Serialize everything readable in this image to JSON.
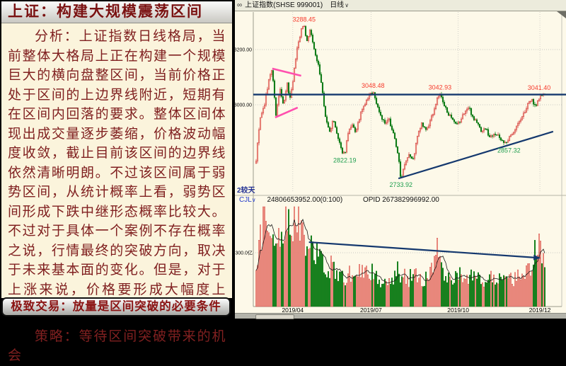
{
  "left_panel": {
    "title": "上证：构建大规模震荡区间",
    "analysis": "分析：上证指数日线格局，当前整体大格局上正在构建一个规模巨大的横向盘整区间，当前价格正处于区间的上边界线附近，短期有在区间内回落的要求。整体区间体现出成交量逐步萎缩，价格波动幅度收敛，截止目前该区间的边界线依然清晰明朗。不过该区间属于弱势区间，从统计概率上看，弱势区间形成下跌中继形态概率比较大。不过对于具体一个案例不存在概率之说，行情最终的突破方向，取决于未来基本面的变化。但是，对于上涨来说，价格要形成大幅度上涨，放量是必要条件。",
    "strategy": "策略：等待区间突破带来的机会",
    "footer_button": "极致交易：放量是区间突破的必要条件"
  },
  "chart": {
    "header": {
      "link_icon": "∞",
      "symbol": "上证指数(SHSE 999001)",
      "period": "日线",
      "dropdown": "∨"
    },
    "pane_tab": "2较天",
    "volume_header": {
      "indicator": "CJL",
      "dropdown": "∨",
      "value": "24806653952.00(0:100)",
      "opid": "OPID 267382996992.00"
    }
  },
  "chart_data": {
    "type": "candlestick",
    "symbol": "上证指数",
    "code": "SHSE 999001",
    "period": "日线",
    "date_range": [
      "2019/02",
      "2019/12"
    ],
    "price_axis": {
      "ticks": [
        {
          "label": "3200.00",
          "price": 3200
        },
        {
          "label": "3000.00",
          "price": 3000
        }
      ]
    },
    "volume_axis": {
      "tick_label": "300.0亿",
      "tick_value": 300,
      "unit": "亿"
    },
    "x_ticks": [
      {
        "label": "2019/04",
        "t": 0.127
      },
      {
        "label": "2019/07",
        "t": 0.398
      },
      {
        "label": "2019/10",
        "t": 0.7
      },
      {
        "label": "2019/12",
        "t": 0.983
      }
    ],
    "price_labels": [
      {
        "text": "3288.45",
        "price": 3288.45,
        "t": 0.166,
        "color": "#f63a2c",
        "pos": "above",
        "dx": 0
      },
      {
        "text": "3048.48",
        "price": 3048.48,
        "t": 0.405,
        "color": "#f63a2c",
        "pos": "above",
        "dx": 0
      },
      {
        "text": "3042.93",
        "price": 3042.93,
        "t": 0.637,
        "color": "#f63a2c",
        "pos": "above",
        "dx": 0
      },
      {
        "text": "3041.40",
        "price": 3041.4,
        "t": 1.0,
        "color": "#f63a2c",
        "pos": "above",
        "dx": -8
      },
      {
        "text": "2822.19",
        "price": 2822.19,
        "t": 0.307,
        "color": "#1e9e4e",
        "pos": "below",
        "dx": 0
      },
      {
        "text": "2733.92",
        "price": 2733.92,
        "t": 0.502,
        "color": "#1e9e4e",
        "pos": "below",
        "dx": 0
      },
      {
        "text": "2857.32",
        "price": 2857.32,
        "t": 0.866,
        "color": "#1e9e4e",
        "pos": "below",
        "dx": 4
      }
    ],
    "close_anchors": [
      [
        0,
        2800
      ],
      [
        0.012,
        2940
      ],
      [
        0.029,
        3000
      ],
      [
        0.044,
        3090
      ],
      [
        0.056,
        3130
      ],
      [
        0.068,
        2960
      ],
      [
        0.083,
        3060
      ],
      [
        0.095,
        2990
      ],
      [
        0.107,
        3080
      ],
      [
        0.117,
        3020
      ],
      [
        0.129,
        3100
      ],
      [
        0.141,
        3200
      ],
      [
        0.156,
        3270
      ],
      [
        0.166,
        3288
      ],
      [
        0.176,
        3230
      ],
      [
        0.188,
        3275
      ],
      [
        0.202,
        3190
      ],
      [
        0.215,
        3150
      ],
      [
        0.227,
        3070
      ],
      [
        0.239,
        2960
      ],
      [
        0.254,
        2900
      ],
      [
        0.268,
        2945
      ],
      [
        0.283,
        2880
      ],
      [
        0.295,
        2835
      ],
      [
        0.307,
        2822
      ],
      [
        0.317,
        2890
      ],
      [
        0.332,
        2925
      ],
      [
        0.346,
        2900
      ],
      [
        0.361,
        2965
      ],
      [
        0.376,
        3000
      ],
      [
        0.39,
        3030
      ],
      [
        0.405,
        3048
      ],
      [
        0.417,
        3005
      ],
      [
        0.432,
        2960
      ],
      [
        0.446,
        2930
      ],
      [
        0.461,
        2945
      ],
      [
        0.476,
        2895
      ],
      [
        0.49,
        2830
      ],
      [
        0.502,
        2733
      ],
      [
        0.515,
        2790
      ],
      [
        0.529,
        2825
      ],
      [
        0.544,
        2800
      ],
      [
        0.559,
        2885
      ],
      [
        0.573,
        2930
      ],
      [
        0.588,
        2905
      ],
      [
        0.602,
        2935
      ],
      [
        0.617,
        2985
      ],
      [
        0.629,
        3025
      ],
      [
        0.637,
        3042
      ],
      [
        0.649,
        3000
      ],
      [
        0.663,
        2975
      ],
      [
        0.678,
        2945
      ],
      [
        0.693,
        2925
      ],
      [
        0.707,
        2940
      ],
      [
        0.722,
        2975
      ],
      [
        0.737,
        2990
      ],
      [
        0.751,
        2955
      ],
      [
        0.766,
        2935
      ],
      [
        0.78,
        2905
      ],
      [
        0.795,
        2915
      ],
      [
        0.81,
        2880
      ],
      [
        0.824,
        2900
      ],
      [
        0.839,
        2885
      ],
      [
        0.854,
        2870
      ],
      [
        0.866,
        2857
      ],
      [
        0.88,
        2885
      ],
      [
        0.895,
        2910
      ],
      [
        0.91,
        2935
      ],
      [
        0.924,
        2960
      ],
      [
        0.939,
        2995
      ],
      [
        0.954,
        3020
      ],
      [
        0.968,
        2995
      ],
      [
        0.983,
        3030
      ],
      [
        1,
        3041
      ]
    ],
    "volume_anchors": [
      [
        0,
        180
      ],
      [
        0.02,
        420
      ],
      [
        0.032,
        560
      ],
      [
        0.044,
        480
      ],
      [
        0.056,
        350
      ],
      [
        0.073,
        300
      ],
      [
        0.088,
        430
      ],
      [
        0.102,
        520
      ],
      [
        0.117,
        430
      ],
      [
        0.132,
        480
      ],
      [
        0.146,
        550
      ],
      [
        0.161,
        440
      ],
      [
        0.176,
        340
      ],
      [
        0.19,
        300
      ],
      [
        0.205,
        330
      ],
      [
        0.22,
        250
      ],
      [
        0.234,
        215
      ],
      [
        0.249,
        180
      ],
      [
        0.263,
        225
      ],
      [
        0.278,
        165
      ],
      [
        0.293,
        185
      ],
      [
        0.307,
        140
      ],
      [
        0.32,
        190
      ],
      [
        0.34,
        155
      ],
      [
        0.35,
        210
      ],
      [
        0.366,
        170
      ],
      [
        0.38,
        230
      ],
      [
        0.39,
        185
      ],
      [
        0.405,
        200
      ],
      [
        0.42,
        160
      ],
      [
        0.434,
        140
      ],
      [
        0.45,
        170
      ],
      [
        0.463,
        140
      ],
      [
        0.478,
        155
      ],
      [
        0.49,
        200
      ],
      [
        0.51,
        170
      ],
      [
        0.527,
        140
      ],
      [
        0.54,
        180
      ],
      [
        0.56,
        160
      ],
      [
        0.573,
        130
      ],
      [
        0.59,
        150
      ],
      [
        0.6,
        180
      ],
      [
        0.617,
        240
      ],
      [
        0.625,
        340
      ],
      [
        0.635,
        260
      ],
      [
        0.65,
        200
      ],
      [
        0.66,
        170
      ],
      [
        0.68,
        150
      ],
      [
        0.695,
        160
      ],
      [
        0.71,
        190
      ],
      [
        0.72,
        170
      ],
      [
        0.74,
        150
      ],
      [
        0.75,
        180
      ],
      [
        0.77,
        160
      ],
      [
        0.78,
        140
      ],
      [
        0.795,
        160
      ],
      [
        0.81,
        150
      ],
      [
        0.825,
        170
      ],
      [
        0.84,
        160
      ],
      [
        0.855,
        150
      ],
      [
        0.866,
        140
      ],
      [
        0.88,
        160
      ],
      [
        0.895,
        150
      ],
      [
        0.91,
        170
      ],
      [
        0.925,
        160
      ],
      [
        0.94,
        180
      ],
      [
        0.952,
        230
      ],
      [
        0.963,
        280
      ],
      [
        0.975,
        330
      ],
      [
        0.99,
        290
      ],
      [
        1,
        260
      ]
    ],
    "annotations": {
      "resistance": {
        "price": 3037,
        "color": "#14386e"
      },
      "rising_support": {
        "from_t": 0.493,
        "from_price": 2733,
        "to_t": 1.029,
        "to_price": 2903,
        "color": "#14386e"
      },
      "pennant_upper": {
        "from_t": 0.056,
        "from_price": 3131,
        "to_t": 0.156,
        "to_price": 3105,
        "color": "#ff4fae"
      },
      "pennant_lower": {
        "from_t": 0.066,
        "from_price": 2954,
        "to_t": 0.144,
        "to_price": 2990,
        "color": "#ff4fae"
      },
      "volume_trend_arrow": {
        "from_t": 0.183,
        "from_vol": 359,
        "to_t": 0.976,
        "to_vol": 272,
        "color": "#14386e"
      }
    },
    "colors": {
      "up_stroke": "#d13c3c",
      "up_fill": "#f6b3a0",
      "down": "#0c7a14",
      "grid": "#c9c9c2",
      "axis": "#9a9a8c",
      "vol_ma_line": "#1a1a1a"
    },
    "seed": 9,
    "candle_count": 205
  }
}
